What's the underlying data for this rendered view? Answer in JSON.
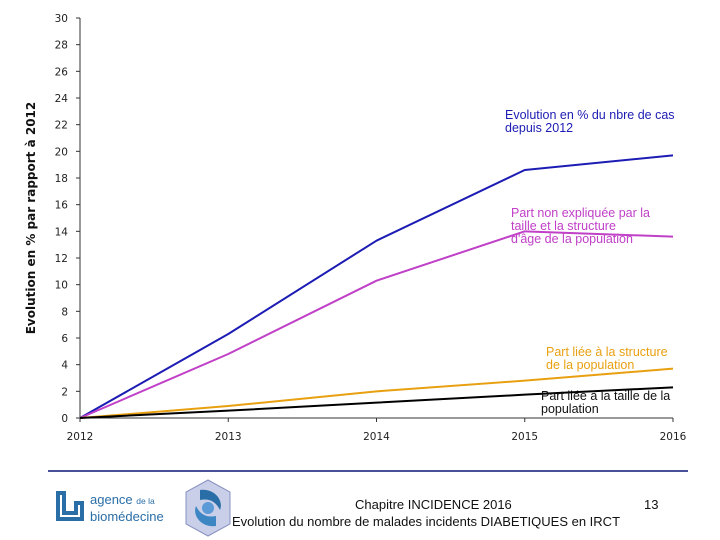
{
  "chart_data": {
    "type": "line",
    "x": [
      2012,
      2013,
      2014,
      2015,
      2016
    ],
    "xlim": [
      2012,
      2016
    ],
    "ylim": [
      0,
      30
    ],
    "ylabel": "Evolution en % par rapport à 2012",
    "xticks": [
      "2012",
      "2013",
      "2014",
      "2015",
      "2016"
    ],
    "yticks": [
      0,
      2,
      4,
      6,
      8,
      10,
      12,
      14,
      16,
      18,
      20,
      22,
      24,
      26,
      28,
      30
    ],
    "series": [
      {
        "name": "Evolution en % du nbre de cas depuis 2012",
        "color": "#1c1cb4",
        "values": [
          0,
          6.3,
          13.3,
          18.6,
          19.7
        ],
        "label_lines": [
          "Evolution en % du nbre de cas",
          "depuis 2012"
        ]
      },
      {
        "name": "Part non expliquée par la taille et la structure d'âge de la population",
        "color": "#c040c8",
        "values": [
          0,
          4.8,
          10.3,
          14.0,
          13.6
        ],
        "label_lines": [
          "Part non expliquée par la",
          "taille et la structure",
          "d'âge de la population"
        ]
      },
      {
        "name": "Part liée à la structure de la population",
        "color": "#e8a010",
        "values": [
          0,
          0.9,
          2.0,
          2.8,
          3.7
        ],
        "label_lines": [
          "Part liée à la structure",
          "de la population"
        ]
      },
      {
        "name": "Part liée à la taille de la population",
        "color": "#000000",
        "values": [
          0,
          0.55,
          1.15,
          1.75,
          2.3
        ],
        "label_lines": [
          "Part liée à la taille de la",
          "population"
        ]
      }
    ]
  },
  "footer": {
    "chapter": "Chapitre INCIDENCE 2016",
    "page_number": "13",
    "subtitle": "Evolution du nombre de malades incidents DIABETIQUES en IRCT",
    "logo_line1": "agence",
    "logo_de_la": "de la",
    "logo_line2": "biomédecine"
  },
  "colors": {
    "accent": "#4a4f9a",
    "logo": "#2a6ea8"
  }
}
